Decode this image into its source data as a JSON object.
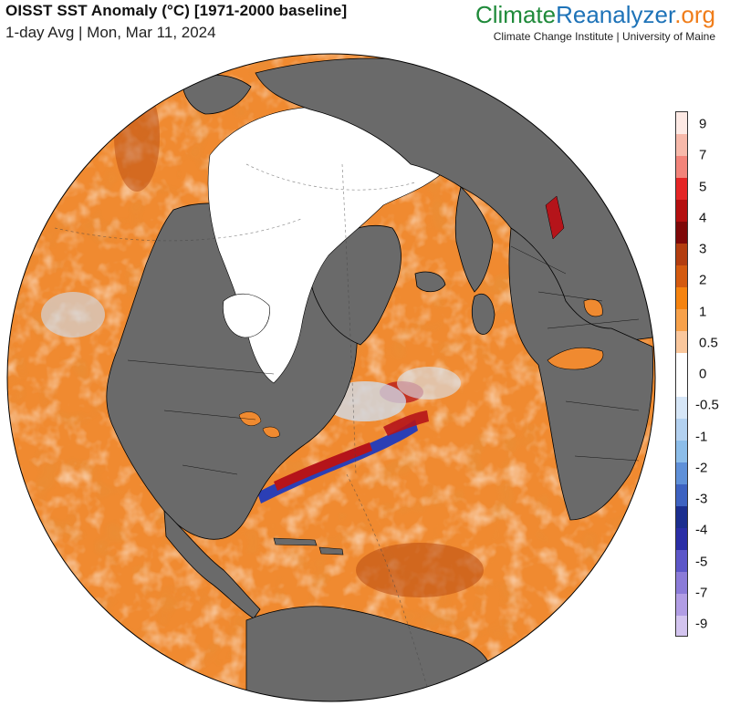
{
  "header": {
    "title": "OISST SST Anomaly (°C) [1971-2000 baseline]",
    "subtitle": "1-day Avg | Mon, Mar 11, 2024"
  },
  "brand": {
    "name_part1": "Climate",
    "name_part2": "Reanalyzer",
    "name_part3": ".org",
    "sub": "Climate Change Institute | University of Maine"
  },
  "legend": {
    "labels": [
      "9",
      "7",
      "5",
      "4",
      "3",
      "2",
      "1",
      "0.5",
      "0",
      "-0.5",
      "-1",
      "-2",
      "-3",
      "-4",
      "-5",
      "-7",
      "-9"
    ],
    "colors": [
      "#fde9e4",
      "#f7b9aa",
      "#f2847a",
      "#e42525",
      "#b40f0f",
      "#7f0808",
      "#b33d0f",
      "#d45a0f",
      "#f5830f",
      "#f7a14a",
      "#fac79c",
      "#ffffff",
      "#ffffff",
      "#d6e6f7",
      "#b3d1f0",
      "#8cbde9",
      "#5f90d8",
      "#3d62c1",
      "#1b2e8f",
      "#2a2ea6",
      "#5c56c8",
      "#8b7bd8",
      "#b19de4",
      "#d3c4ef"
    ]
  },
  "map": {
    "ocean_anomaly_color": "#f08a30",
    "land_color": "#6a6a6a",
    "ice_color": "#ffffff",
    "cold_anomaly_color": "#2b3fb5",
    "hot_anomaly_color": "#b5141a"
  }
}
